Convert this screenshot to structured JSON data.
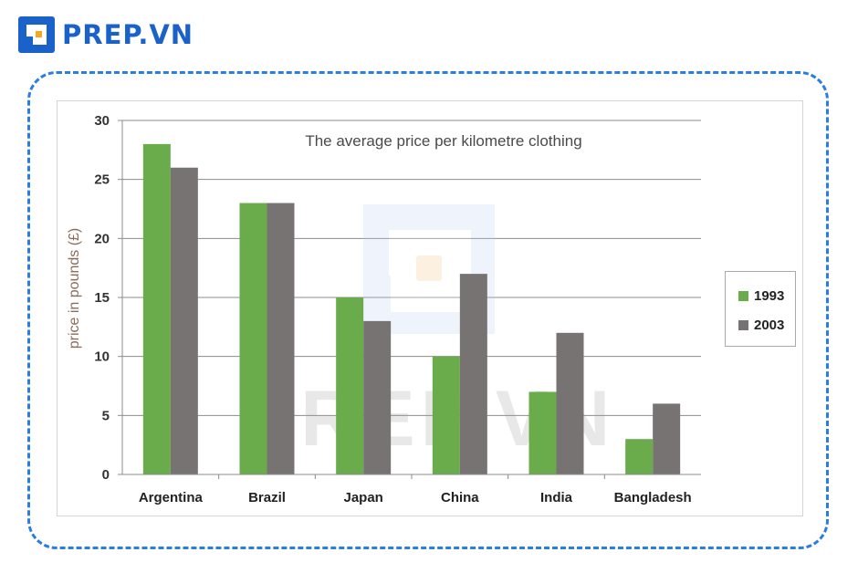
{
  "brand": {
    "name": "PREP.VN",
    "color": "#1a62c9",
    "accent": "#f5a623"
  },
  "watermark": {
    "text": "PREP.VN"
  },
  "chart_data": {
    "type": "bar",
    "title": "The average price per kilometre clothing",
    "xlabel": "",
    "ylabel": "price in pounds (£)",
    "categories": [
      "Argentina",
      "Brazil",
      "Japan",
      "China",
      "India",
      "Bangladesh"
    ],
    "series": [
      {
        "name": "1993",
        "values": [
          28,
          23,
          15,
          10,
          7,
          3
        ],
        "color": "#6aab4b"
      },
      {
        "name": "2003",
        "values": [
          26,
          23,
          13,
          17,
          12,
          6
        ],
        "color": "#787373"
      }
    ],
    "ylim": [
      0,
      30
    ],
    "yticks": [
      0,
      5,
      10,
      15,
      20,
      25,
      30
    ],
    "grid": true,
    "legend_position": "right"
  }
}
